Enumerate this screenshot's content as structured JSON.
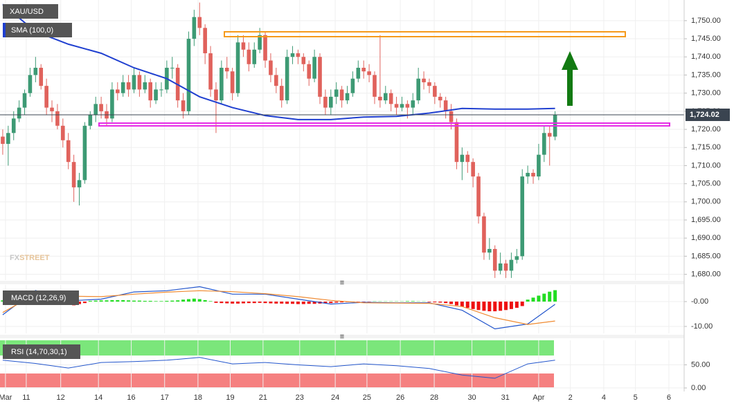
{
  "chart_data": [
    {
      "type": "candlestick",
      "title": "XAU/USD",
      "up_color": "#3d9a74",
      "down_color": "#e0625c",
      "watermark": [
        "FX",
        "STREET"
      ],
      "ohlc": [
        [
          1718,
          1720,
          1713,
          1716
        ],
        [
          1716,
          1721,
          1710,
          1719
        ],
        [
          1719,
          1725,
          1717,
          1723
        ],
        [
          1723,
          1728,
          1722,
          1726
        ],
        [
          1726,
          1731,
          1724,
          1730
        ],
        [
          1730,
          1737,
          1729,
          1735
        ],
        [
          1735,
          1740,
          1733,
          1737
        ],
        [
          1737,
          1738,
          1731,
          1732
        ],
        [
          1732,
          1734,
          1724,
          1726
        ],
        [
          1726,
          1728,
          1722,
          1725
        ],
        [
          1725,
          1727,
          1720,
          1721
        ],
        [
          1721,
          1723,
          1715,
          1717
        ],
        [
          1717,
          1719,
          1709,
          1711
        ],
        [
          1711,
          1713,
          1700,
          1704
        ],
        [
          1704,
          1708,
          1699,
          1706
        ],
        [
          1706,
          1722,
          1705,
          1721
        ],
        [
          1721,
          1725,
          1720,
          1724
        ],
        [
          1724,
          1729,
          1722,
          1727
        ],
        [
          1727,
          1729,
          1723,
          1725
        ],
        [
          1725,
          1727,
          1721,
          1723
        ],
        [
          1723,
          1733,
          1722,
          1731
        ],
        [
          1731,
          1733,
          1728,
          1730
        ],
        [
          1730,
          1735,
          1729,
          1733
        ],
        [
          1733,
          1735,
          1729,
          1731
        ],
        [
          1731,
          1737,
          1730,
          1735
        ],
        [
          1735,
          1736,
          1729,
          1731
        ],
        [
          1731,
          1735,
          1730,
          1733
        ],
        [
          1733,
          1734,
          1726,
          1728
        ],
        [
          1728,
          1733,
          1727,
          1731
        ],
        [
          1731,
          1733,
          1729,
          1731
        ],
        [
          1731,
          1739,
          1730,
          1737
        ],
        [
          1737,
          1740,
          1734,
          1737
        ],
        [
          1737,
          1738,
          1726,
          1728
        ],
        [
          1728,
          1730,
          1723,
          1725
        ],
        [
          1725,
          1747,
          1724,
          1745
        ],
        [
          1745,
          1753,
          1743,
          1751
        ],
        [
          1751,
          1755,
          1746,
          1748
        ],
        [
          1748,
          1749,
          1738,
          1741
        ],
        [
          1741,
          1743,
          1729,
          1731
        ],
        [
          1731,
          1733,
          1719,
          1728
        ],
        [
          1728,
          1739,
          1727,
          1737
        ],
        [
          1737,
          1740,
          1734,
          1736
        ],
        [
          1736,
          1737,
          1728,
          1730
        ],
        [
          1730,
          1746,
          1729,
          1744
        ],
        [
          1744,
          1746,
          1740,
          1742
        ],
        [
          1742,
          1744,
          1736,
          1738
        ],
        [
          1738,
          1744,
          1737,
          1742
        ],
        [
          1742,
          1748,
          1741,
          1746
        ],
        [
          1746,
          1747,
          1737,
          1739
        ],
        [
          1739,
          1741,
          1733,
          1735
        ],
        [
          1735,
          1737,
          1730,
          1732
        ],
        [
          1732,
          1734,
          1726,
          1728
        ],
        [
          1728,
          1742,
          1727,
          1740
        ],
        [
          1740,
          1743,
          1738,
          1741
        ],
        [
          1741,
          1742,
          1738,
          1740
        ],
        [
          1740,
          1741,
          1736,
          1738
        ],
        [
          1738,
          1739,
          1732,
          1734
        ],
        [
          1734,
          1742,
          1733,
          1740
        ],
        [
          1740,
          1741,
          1727,
          1729
        ],
        [
          1729,
          1731,
          1724,
          1726
        ],
        [
          1726,
          1731,
          1724,
          1729
        ],
        [
          1729,
          1733,
          1727,
          1731
        ],
        [
          1731,
          1732,
          1726,
          1728
        ],
        [
          1728,
          1732,
          1727,
          1730
        ],
        [
          1730,
          1736,
          1729,
          1734
        ],
        [
          1734,
          1739,
          1733,
          1737
        ],
        [
          1737,
          1739,
          1734,
          1736
        ],
        [
          1736,
          1738,
          1733,
          1735
        ],
        [
          1735,
          1736,
          1727,
          1729
        ],
        [
          1729,
          1746,
          1726,
          1728
        ],
        [
          1728,
          1732,
          1727,
          1730
        ],
        [
          1730,
          1731,
          1725,
          1727
        ],
        [
          1727,
          1729,
          1724,
          1726
        ],
        [
          1726,
          1729,
          1725,
          1727
        ],
        [
          1727,
          1728,
          1723,
          1726
        ],
        [
          1726,
          1730,
          1724,
          1728
        ],
        [
          1728,
          1737,
          1727,
          1734
        ],
        [
          1734,
          1736,
          1731,
          1733
        ],
        [
          1733,
          1734,
          1730,
          1732
        ],
        [
          1732,
          1733,
          1727,
          1729
        ],
        [
          1729,
          1730,
          1726,
          1728
        ],
        [
          1728,
          1729,
          1723,
          1725
        ],
        [
          1725,
          1727,
          1720,
          1722
        ],
        [
          1722,
          1723,
          1709,
          1711
        ],
        [
          1711,
          1715,
          1706,
          1713
        ],
        [
          1713,
          1714,
          1708,
          1711
        ],
        [
          1711,
          1712,
          1704,
          1707
        ],
        [
          1707,
          1708,
          1694,
          1696
        ],
        [
          1696,
          1697,
          1684,
          1686
        ],
        [
          1686,
          1690,
          1684,
          1687
        ],
        [
          1687,
          1688,
          1679,
          1681
        ],
        [
          1681,
          1686,
          1680,
          1683
        ],
        [
          1683,
          1684,
          1679,
          1681
        ],
        [
          1681,
          1686,
          1679,
          1684
        ],
        [
          1684,
          1687,
          1683,
          1685
        ],
        [
          1685,
          1709,
          1684,
          1707
        ],
        [
          1707,
          1710,
          1705,
          1708
        ],
        [
          1708,
          1709,
          1705,
          1707
        ],
        [
          1707,
          1716,
          1706,
          1713
        ],
        [
          1713,
          1721,
          1711,
          1719
        ],
        [
          1719,
          1721,
          1710,
          1718
        ],
        [
          1718,
          1725,
          1717,
          1724.02
        ]
      ],
      "series": [
        {
          "name": "SMA (100,0)",
          "color": "#1f3fd0",
          "x": [
            0,
            6,
            12,
            18,
            24,
            30,
            36,
            42,
            48,
            54,
            60,
            66,
            72,
            78,
            84,
            90,
            96,
            101
          ],
          "values": [
            1754.5,
            1747,
            1743.5,
            1741,
            1737,
            1734,
            1729,
            1726,
            1723.8,
            1722.7,
            1722.7,
            1723.4,
            1723.6,
            1724.5,
            1725.8,
            1725.6,
            1725.6,
            1725.8
          ]
        }
      ],
      "last_price": {
        "value": 1724.02,
        "label": "1,724.02"
      },
      "ylim": [
        1678.4,
        1755.7
      ],
      "yticks": [
        {
          "value": 1750,
          "label": "1,750.00"
        },
        {
          "value": 1745,
          "label": "1,745.00"
        },
        {
          "value": 1740,
          "label": "1,740.00"
        },
        {
          "value": 1735,
          "label": "1,735.00"
        },
        {
          "value": 1730,
          "label": "1,730.00"
        },
        {
          "value": 1725,
          "label": "1,725.00"
        },
        {
          "value": 1720,
          "label": "1,720.00"
        },
        {
          "value": 1715,
          "label": "1,715.00"
        },
        {
          "value": 1710,
          "label": "1,710.00"
        },
        {
          "value": 1705,
          "label": "1,705.00"
        },
        {
          "value": 1700,
          "label": "1,700.00"
        },
        {
          "value": 1695,
          "label": "1,695.00"
        },
        {
          "value": 1690,
          "label": "1,690.00"
        },
        {
          "value": 1685,
          "label": "1,685.00"
        },
        {
          "value": 1680,
          "label": "1,680.00"
        }
      ],
      "xlim": [
        -0.5,
        124.6
      ],
      "xticks": [
        {
          "value": 0.5,
          "label": "Mar"
        },
        {
          "value": 4.3,
          "label": "11"
        },
        {
          "value": 10.6,
          "label": "12"
        },
        {
          "value": 17.5,
          "label": "14"
        },
        {
          "value": 23.5,
          "label": "16"
        },
        {
          "value": 29.6,
          "label": "17"
        },
        {
          "value": 35.7,
          "label": "18"
        },
        {
          "value": 41.6,
          "label": "19"
        },
        {
          "value": 47.6,
          "label": "21"
        },
        {
          "value": 54.3,
          "label": "23"
        },
        {
          "value": 60.8,
          "label": "24"
        },
        {
          "value": 66.6,
          "label": "25"
        },
        {
          "value": 72.7,
          "label": "26"
        },
        {
          "value": 78.9,
          "label": "28"
        },
        {
          "value": 85.8,
          "label": "30"
        },
        {
          "value": 91.9,
          "label": "31"
        },
        {
          "value": 98,
          "label": "Apr"
        },
        {
          "value": 103.8,
          "label": "2"
        },
        {
          "value": 109.9,
          "label": "4"
        },
        {
          "value": 115.7,
          "label": "5"
        },
        {
          "value": 121.8,
          "label": "6"
        }
      ]
    },
    {
      "type": "macd",
      "title": "MACD (12,26,9)",
      "x": [
        0,
        6,
        12,
        18,
        24,
        30,
        36,
        42,
        48,
        54,
        60,
        66,
        72,
        78,
        84,
        90,
        96,
        101
      ],
      "series": [
        {
          "color": "#2255cc",
          "values": [
            -5.3,
            4.5,
            0.3,
            1.0,
            3.9,
            4.4,
            6.0,
            3.0,
            3.0,
            1.0,
            -1.0,
            -0.3,
            -0.5,
            -0.5,
            -3.5,
            -11.0,
            -9.0,
            -1.1
          ]
        },
        {
          "color": "#f08a30",
          "values": [
            -4.4,
            3.0,
            2.2,
            2.0,
            3.0,
            3.8,
            4.4,
            4.0,
            3.2,
            2.0,
            0.5,
            -0.5,
            -0.6,
            -0.7,
            -2.0,
            -6.5,
            -9.2,
            -7.8
          ]
        }
      ],
      "histogram": {
        "up_color": "#22dd22",
        "down_color": "#ee1111",
        "values": [
          0.5,
          0.6,
          0.7,
          0.8,
          0.6,
          0.5,
          0.4,
          0.3,
          0.2,
          0.1,
          -0.3,
          -0.6,
          -1.2,
          -1.5,
          -1.0,
          -0.6,
          0.3,
          0.4,
          0.5,
          0.5,
          0.6,
          0.6,
          0.6,
          0.5,
          0.4,
          0.4,
          0.3,
          0.3,
          0.2,
          0.2,
          0.3,
          0.4,
          0.5,
          0.8,
          1.0,
          1.2,
          1.0,
          0.6,
          0.2,
          -0.5,
          -0.6,
          -0.7,
          -0.8,
          -0.8,
          -0.7,
          -0.6,
          -0.6,
          -0.5,
          -0.6,
          -0.7,
          -0.8,
          -0.8,
          -0.9,
          -0.9,
          -1.0,
          -1.0,
          -0.9,
          -0.9,
          -0.8,
          -0.7,
          -0.6,
          -0.4,
          -0.3,
          -0.2,
          -0.2,
          -0.1,
          -0.1,
          -0.1,
          0.1,
          0.1,
          0.1,
          0.1,
          0.1,
          0.1,
          0.2,
          0.2,
          0.1,
          0.1,
          -0.2,
          -0.3,
          -0.4,
          -0.6,
          -1.0,
          -1.5,
          -2.0,
          -2.5,
          -3.0,
          -3.4,
          -3.7,
          -3.9,
          -3.9,
          -3.7,
          -3.4,
          -3.0,
          -2.5,
          -1.8,
          0.8,
          1.6,
          2.4,
          3.2,
          4.0,
          4.6
        ]
      },
      "ylim": [
        -12.8,
        6.7
      ],
      "yticks": [
        {
          "value": 0,
          "label": "-0.00"
        },
        {
          "value": -10,
          "label": "-10.00"
        }
      ]
    },
    {
      "type": "rsi",
      "title": "RSI (14,70,30,1)",
      "color": "#2255cc",
      "x": [
        0,
        6,
        12,
        18,
        24,
        30,
        36,
        42,
        48,
        54,
        60,
        66,
        72,
        78,
        84,
        90,
        96,
        101
      ],
      "values": [
        60,
        53,
        43,
        55,
        57,
        60,
        66,
        52,
        55,
        50,
        46,
        52,
        48,
        42,
        28,
        21,
        52,
        60
      ],
      "ylim": [
        -7.6,
        103
      ],
      "yticks": [
        {
          "value": 50,
          "label": "50.00"
        },
        {
          "value": 0,
          "label": "0.00"
        }
      ]
    }
  ]
}
